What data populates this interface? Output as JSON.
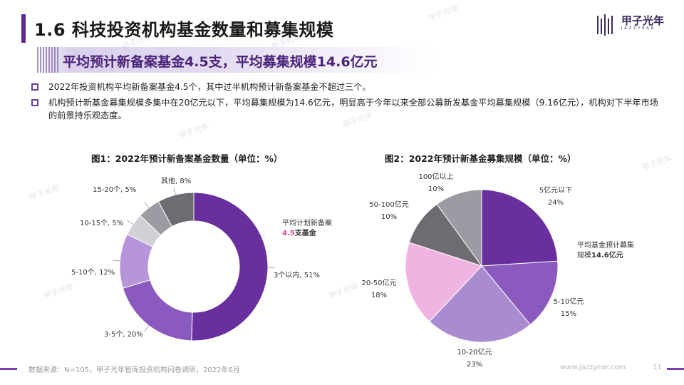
{
  "header": {
    "title": "1.6 科技投资机构基金数量和募集规模",
    "logo_text": "甲子光年",
    "logo_sub": "JAZZYEAR"
  },
  "subtitle": "平均预计新备案基金4.5支，平均募集规模14.6亿元",
  "bullets": [
    "2022年投资机构平均新备案基金4.5个，其中过半机构预计新备案基金不超过三个。",
    "机构预计新基金募集规模多集中在20亿元以下，平均募集规模为14.6亿元，明显高于今年以来全部公募新发基金平均募集规模（9.16亿元），机构对下半年市场的前景持乐观态度。"
  ],
  "colors": {
    "accent": "#5b2a8c",
    "bullet_box": "#6a3a9a",
    "highlight": "#d9418f"
  },
  "chart_data": [
    {
      "type": "pie",
      "variant": "donut",
      "title": "图1：2022年预计新备案基金数量（单位：%）",
      "center_label": {
        "line1": "平均计划新备案",
        "value": "4.5",
        "suffix": "支基金"
      },
      "categories": [
        "3个以内",
        "3-5个",
        "5-10个",
        "10-15个",
        "15-20个",
        "其他"
      ],
      "values": [
        51,
        20,
        12,
        5,
        5,
        8
      ],
      "labels": [
        "3个以内, 51%",
        "3-5个, 20%",
        "5-10个, 12%",
        "10-15个, 5%",
        "15-20个, 5%",
        "其他, 8%"
      ],
      "colors": [
        "#6a2f9e",
        "#8a5abf",
        "#b795db",
        "#d2d0d6",
        "#9e9aa3",
        "#6e6b72"
      ]
    },
    {
      "type": "pie",
      "title": "图2：2022年预计新基金募集规模（单位：%）",
      "center_label": {
        "line1": "平均基金预计募集",
        "line2_prefix": "规模",
        "value": "14.6",
        "suffix": "亿元"
      },
      "categories": [
        "5亿元以下",
        "5-10亿元",
        "10-20亿元",
        "20-50亿元",
        "50-100亿元",
        "100亿以上"
      ],
      "values": [
        24,
        15,
        23,
        18,
        10,
        10
      ],
      "label_names": [
        "5亿元以下",
        "5-10亿元",
        "10-20亿元",
        "20-50亿元",
        "50-100亿元",
        "100亿以上"
      ],
      "label_values": [
        "24%",
        "15%",
        "23%",
        "18%",
        "10%",
        "10%"
      ],
      "colors": [
        "#6a2f9e",
        "#8a5abf",
        "#a98bd0",
        "#f0b4e2",
        "#6e6b72",
        "#9e9aa3"
      ]
    }
  ],
  "footer": {
    "source": "数据来源：N=105，甲子光年智库投资机构问卷调研，2022年6月",
    "url": "www.jazzyear.com",
    "page": "11"
  },
  "watermark": "甲子光年"
}
